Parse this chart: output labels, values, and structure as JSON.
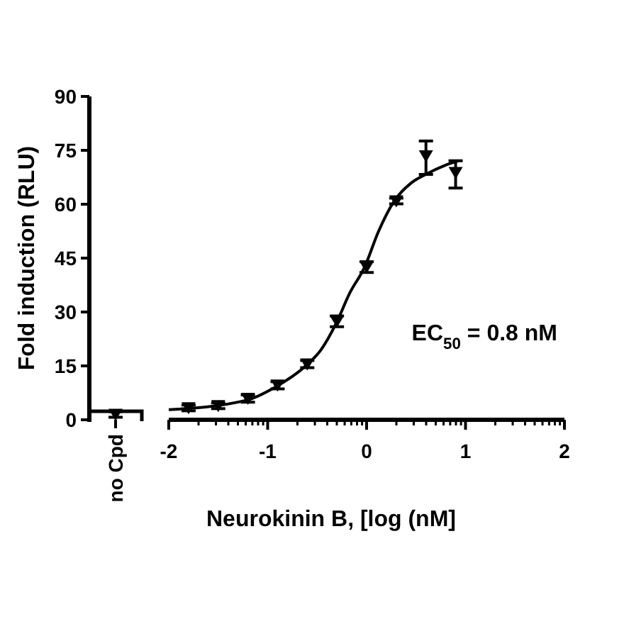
{
  "chart_data": [
    {
      "type": "scatter",
      "ylabel": "Fold induction (RLU)",
      "categories": [
        "no Cpd"
      ],
      "ylim": [
        0,
        90
      ],
      "yticks": [
        0,
        15,
        30,
        45,
        60,
        75,
        90
      ],
      "marker": "triangle",
      "grid": false,
      "series": [
        {
          "color": "#000000",
          "values": [
            1.5
          ],
          "errors": [
            0.8
          ]
        }
      ]
    },
    {
      "type": "scatter",
      "xlabel": "Neurokinin B, [log (nM]",
      "xlim": [
        -2,
        2
      ],
      "xticks": [
        -2,
        -1,
        0,
        1,
        2
      ],
      "ylim": [
        0,
        90
      ],
      "tick_labels": "x",
      "marker": "triangle",
      "grid": false,
      "annotations": [
        "EC$_{50}$ = 0.8 nM"
      ],
      "series": [
        {
          "color": "#000000",
          "x": [
            -1.8,
            -1.5,
            -1.2,
            -0.9,
            -0.6,
            -0.3,
            0,
            0.3,
            0.6,
            0.9
          ],
          "values": [
            3.3,
            3.9,
            5.9,
            9.6,
            15.5,
            27.4,
            42.5,
            60.9,
            73.4,
            68.8
          ],
          "errors": [
            0.8,
            0.8,
            1,
            1,
            1,
            1.5,
            1.5,
            0.8,
            [
              68.3,
              77.6
            ],
            [
              64.5,
              72.1
            ]
          ]
        },
        {
          "type": "line",
          "color": "#000000",
          "marker": "none",
          "x": [
            -2.0,
            -1.22,
            -0.93,
            -0.62,
            -0.46,
            -0.31,
            -0.17,
            -0.02,
            0.12,
            0.28,
            0.45,
            0.59,
            0.79,
            0.93
          ],
          "values": [
            2.8,
            5.4,
            9.0,
            14.9,
            19.5,
            26.7,
            35.3,
            42.5,
            52.4,
            60.9,
            65.9,
            68.2,
            70.8,
            72.1
          ]
        }
      ]
    }
  ]
}
